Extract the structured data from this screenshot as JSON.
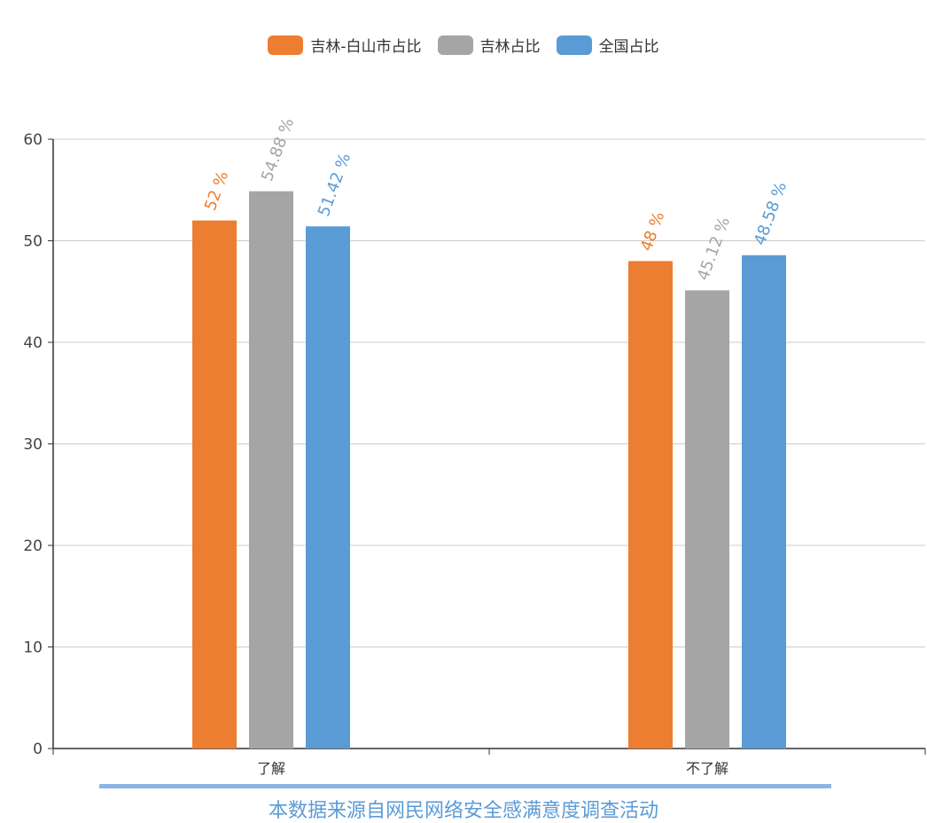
{
  "chart_data": {
    "type": "bar",
    "categories": [
      "了解",
      "不了解"
    ],
    "series": [
      {
        "name": "吉林-白山市占比",
        "values": [
          52,
          48
        ],
        "labels": [
          "52 %",
          "48 %"
        ],
        "color": "#ed7d31"
      },
      {
        "name": "吉林占比",
        "values": [
          54.88,
          45.12
        ],
        "labels": [
          "54.88 %",
          "45.12 %"
        ],
        "color": "#a5a5a5"
      },
      {
        "name": "全国占比",
        "values": [
          51.42,
          48.58
        ],
        "labels": [
          "51.42 %",
          "48.58 %"
        ],
        "color": "#5b9bd5"
      }
    ],
    "ylim": [
      0,
      60
    ],
    "yticks": [
      0,
      10,
      20,
      30,
      40,
      50,
      60
    ],
    "grid": true,
    "legend_position": "top-center"
  },
  "footer": {
    "source_text": "本数据来源自网民网络安全感满意度调查活动"
  }
}
